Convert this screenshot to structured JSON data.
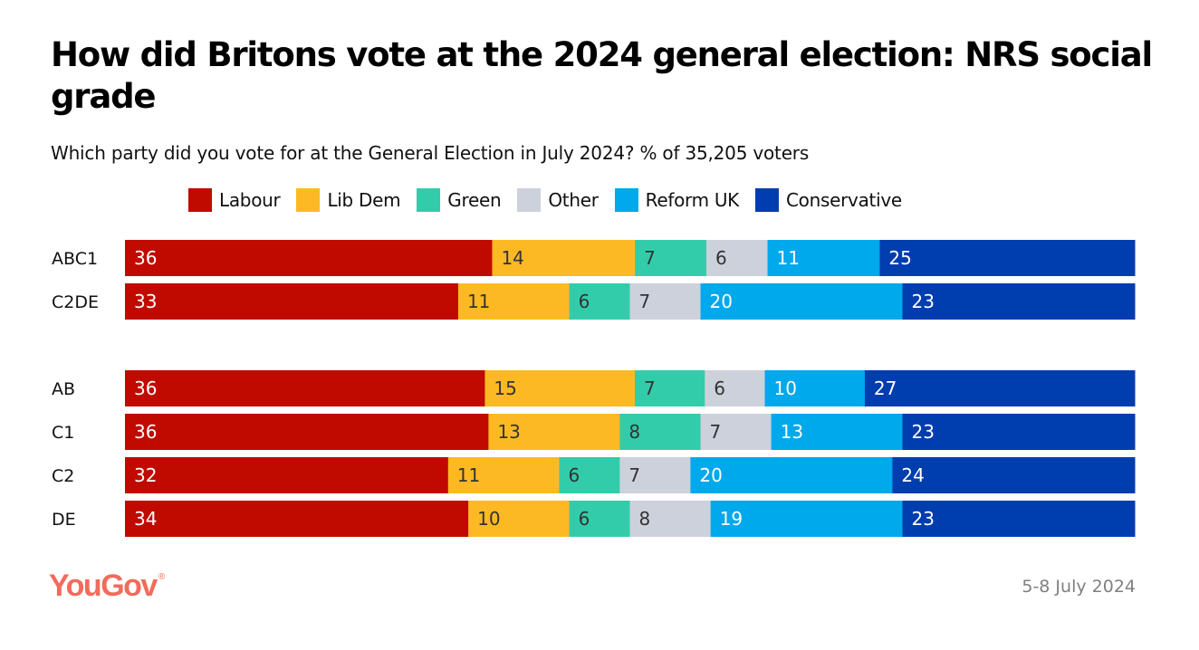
{
  "chart_data": {
    "type": "bar",
    "orientation": "horizontal",
    "stacked": true,
    "title": "How did Britons vote at the 2024 general election: NRS social grade",
    "subtitle": "Which party did you vote for at the General Election in July 2024? % of 35,205 voters",
    "xlabel": "",
    "ylabel": "",
    "legend_position": "top",
    "grid": false,
    "categories": [
      "ABC1",
      "C2DE",
      "AB",
      "C1",
      "C2",
      "DE"
    ],
    "groups": [
      [
        "ABC1",
        "C2DE"
      ],
      [
        "AB",
        "C1",
        "C2",
        "DE"
      ]
    ],
    "series": [
      {
        "name": "Labour",
        "color": "#c00a00",
        "label_color": "#ffffff",
        "values": [
          36,
          33,
          36,
          36,
          32,
          34
        ]
      },
      {
        "name": "Lib Dem",
        "color": "#fdb924",
        "label_color": "#333333",
        "values": [
          14,
          11,
          15,
          13,
          11,
          10
        ]
      },
      {
        "name": "Green",
        "color": "#33ccaa",
        "label_color": "#333333",
        "values": [
          7,
          6,
          7,
          8,
          6,
          6
        ]
      },
      {
        "name": "Other",
        "color": "#cdd1db",
        "label_color": "#333333",
        "values": [
          6,
          7,
          6,
          7,
          7,
          8
        ]
      },
      {
        "name": "Reform UK",
        "color": "#00a8ec",
        "label_color": "#ffffff",
        "values": [
          11,
          20,
          10,
          13,
          20,
          19
        ]
      },
      {
        "name": "Conservative",
        "color": "#003daf",
        "label_color": "#ffffff",
        "values": [
          25,
          23,
          27,
          23,
          24,
          23
        ]
      }
    ]
  },
  "footer": {
    "brand": "YouGov",
    "brand_mark": "®",
    "date": "5-8 July 2024"
  }
}
